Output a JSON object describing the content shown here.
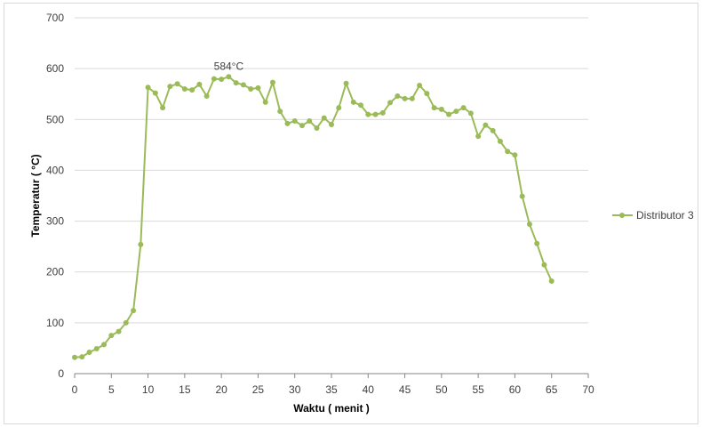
{
  "chart_data": {
    "type": "line",
    "title": "",
    "xlabel": "Waktu ( menit )",
    "ylabel": "Temperatur ( °C)",
    "xlim": [
      0,
      70
    ],
    "ylim": [
      0,
      700
    ],
    "xticks": [
      0,
      5,
      10,
      15,
      20,
      25,
      30,
      35,
      40,
      45,
      50,
      55,
      60,
      65,
      70
    ],
    "yticks": [
      0,
      100,
      200,
      300,
      400,
      500,
      600,
      700
    ],
    "grid": "horizontal",
    "legend_position": "right",
    "colors": {
      "series": "#9bbb59",
      "grid": "#d9d9d9",
      "axis": "#868686"
    },
    "annotations": [
      {
        "text": "584°C",
        "x": 21,
        "y": 584
      }
    ],
    "series": [
      {
        "name": "Distributor 3",
        "x": [
          0,
          1,
          2,
          3,
          4,
          5,
          6,
          7,
          8,
          9,
          10,
          11,
          12,
          13,
          14,
          15,
          16,
          17,
          18,
          19,
          20,
          21,
          22,
          23,
          24,
          25,
          26,
          27,
          28,
          29,
          30,
          31,
          32,
          33,
          34,
          35,
          36,
          37,
          38,
          39,
          40,
          41,
          42,
          43,
          44,
          45,
          46,
          47,
          48,
          49,
          50,
          51,
          52,
          53,
          54,
          55,
          56,
          57,
          58,
          59,
          60,
          61,
          62,
          63,
          64,
          65
        ],
        "y": [
          32,
          33,
          42,
          49,
          57,
          75,
          83,
          100,
          124,
          254,
          563,
          552,
          523,
          565,
          570,
          560,
          558,
          569,
          546,
          580,
          579,
          584,
          572,
          568,
          560,
          562,
          534,
          573,
          516,
          492,
          497,
          488,
          497,
          483,
          503,
          490,
          523,
          571,
          534,
          528,
          510,
          510,
          513,
          533,
          546,
          541,
          541,
          567,
          551,
          523,
          520,
          510,
          516,
          523,
          512,
          467,
          489,
          478,
          457,
          437,
          430,
          349,
          294,
          256,
          214,
          182
        ]
      }
    ]
  }
}
